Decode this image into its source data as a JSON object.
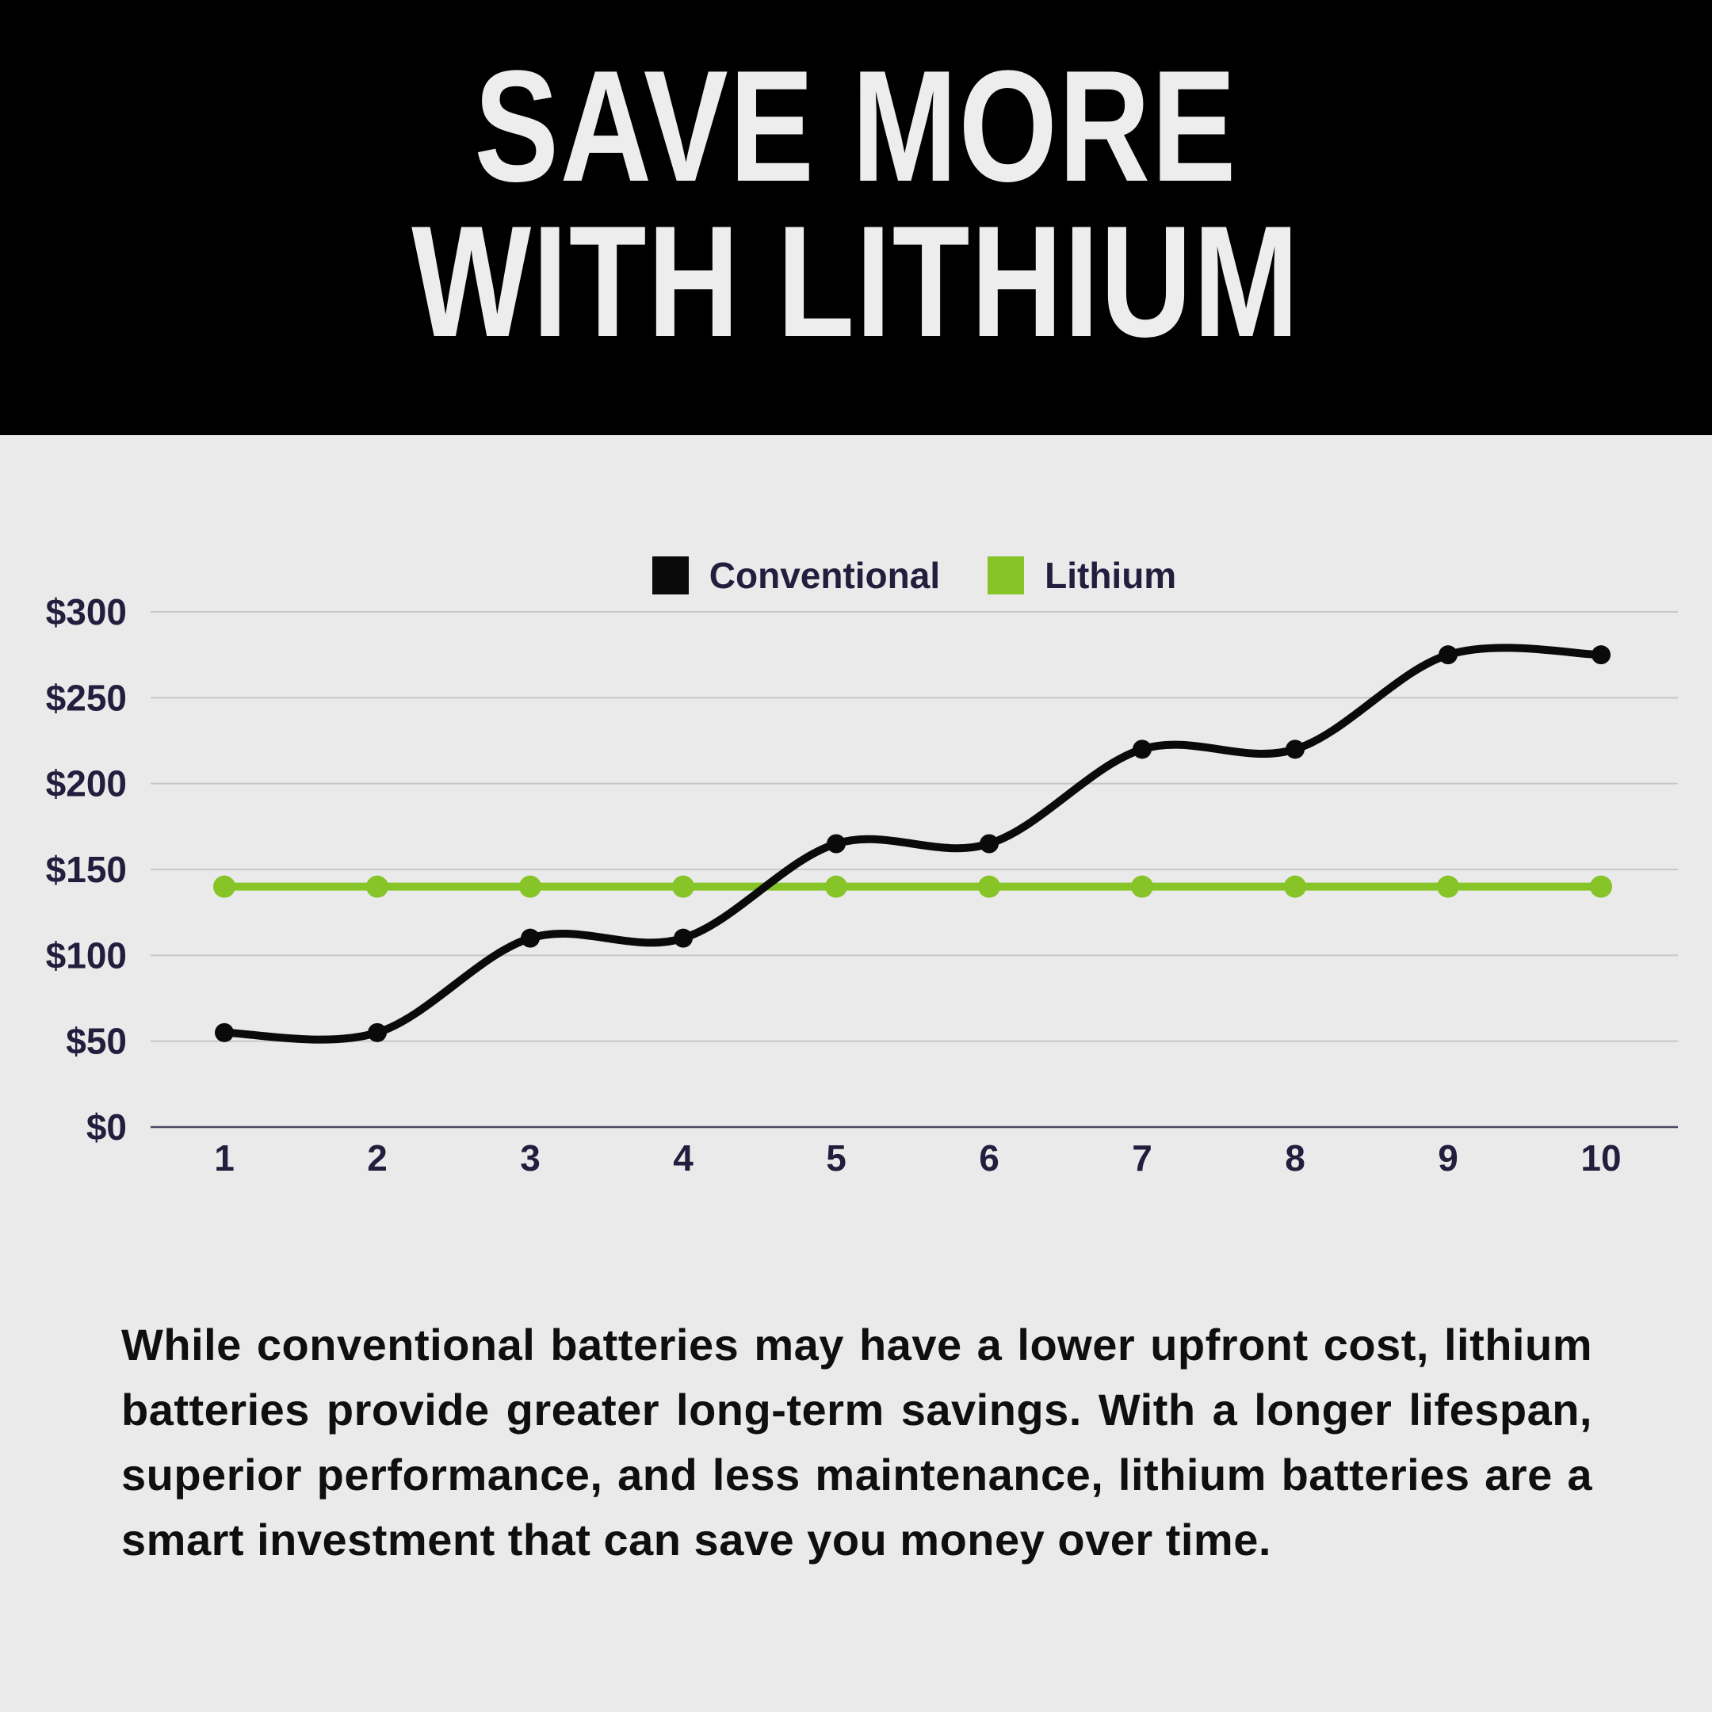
{
  "header": {
    "title_line1": "SAVE MORE",
    "title_line2": "WITH LITHIUM"
  },
  "chart": {
    "legend": [
      {
        "label": "Conventional",
        "color": "#0a0a0a"
      },
      {
        "label": "Lithium",
        "color": "#86C427"
      }
    ]
  },
  "chart_data": {
    "type": "line",
    "title": "",
    "xlabel": "",
    "ylabel": "",
    "x": [
      1,
      2,
      3,
      4,
      5,
      6,
      7,
      8,
      9,
      10
    ],
    "xtick_labels": [
      "1",
      "2",
      "3",
      "4",
      "5",
      "6",
      "7",
      "8",
      "9",
      "10"
    ],
    "series": [
      {
        "name": "Conventional",
        "color": "#0a0a0a",
        "values": [
          55,
          55,
          110,
          110,
          165,
          165,
          220,
          220,
          275,
          275
        ],
        "smooth": true,
        "point_radius": 12
      },
      {
        "name": "Lithium",
        "color": "#86C427",
        "values": [
          140,
          140,
          140,
          140,
          140,
          140,
          140,
          140,
          140,
          140
        ],
        "smooth": false,
        "point_radius": 14
      }
    ],
    "ylim": [
      0,
      300
    ],
    "yticks": [
      0,
      50,
      100,
      150,
      200,
      250,
      300
    ],
    "ytick_labels": [
      "$0",
      "$50",
      "$100",
      "$150",
      "$200",
      "$250",
      "$300"
    ],
    "grid": true,
    "legend_position": "top-center",
    "axis_label_color": "#221e3e",
    "gridline_color": "#c7c7c7",
    "baseline_color": "#4a4664",
    "background_color": "#eaeaea"
  },
  "paragraph": {
    "text": "While conventional batteries may have a lower upfront cost, lithium batteries provide greater long-term savings. With a longer lifespan, superior performance, and less maintenance, lithium batteries are a smart investment that can save you money over time."
  }
}
